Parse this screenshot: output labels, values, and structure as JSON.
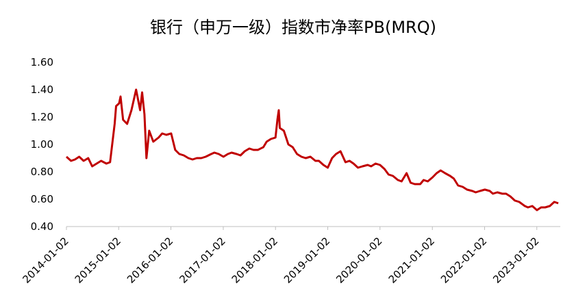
{
  "chart_data": {
    "type": "line",
    "title": "银行（申万一级）指数市净率PB(MRQ)",
    "color": "#c00000",
    "x": [
      "2014-01-02",
      "2014-02-03",
      "2014-03-03",
      "2014-04-01",
      "2014-05-02",
      "2014-06-03",
      "2014-07-01",
      "2014-08-01",
      "2014-09-01",
      "2014-10-08",
      "2014-11-03",
      "2014-12-05",
      "2014-12-15",
      "2015-01-05",
      "2015-01-15",
      "2015-02-02",
      "2015-03-02",
      "2015-04-01",
      "2015-05-04",
      "2015-06-01",
      "2015-06-15",
      "2015-07-01",
      "2015-07-15",
      "2015-08-03",
      "2015-09-01",
      "2015-10-08",
      "2015-11-02",
      "2015-12-01",
      "2016-01-04",
      "2016-02-01",
      "2016-03-01",
      "2016-04-01",
      "2016-05-03",
      "2016-06-01",
      "2016-07-01",
      "2016-08-01",
      "2016-09-01",
      "2016-10-10",
      "2016-11-01",
      "2016-12-01",
      "2017-01-03",
      "2017-02-03",
      "2017-03-01",
      "2017-04-05",
      "2017-05-02",
      "2017-06-01",
      "2017-07-03",
      "2017-08-01",
      "2017-09-01",
      "2017-10-09",
      "2017-11-01",
      "2017-12-01",
      "2018-01-02",
      "2018-01-15",
      "2018-01-25",
      "2018-02-01",
      "2018-03-01",
      "2018-04-02",
      "2018-05-02",
      "2018-06-01",
      "2018-07-02",
      "2018-08-01",
      "2018-09-03",
      "2018-10-08",
      "2018-11-01",
      "2018-12-03",
      "2019-01-02",
      "2019-02-01",
      "2019-03-01",
      "2019-04-01",
      "2019-05-06",
      "2019-06-03",
      "2019-07-01",
      "2019-08-01",
      "2019-09-02",
      "2019-10-08",
      "2019-11-01",
      "2019-12-02",
      "2020-01-02",
      "2020-02-03",
      "2020-03-02",
      "2020-04-01",
      "2020-05-06",
      "2020-06-01",
      "2020-07-06",
      "2020-08-03",
      "2020-09-01",
      "2020-10-09",
      "2020-11-02",
      "2020-12-01",
      "2021-01-04",
      "2021-02-01",
      "2021-03-01",
      "2021-04-01",
      "2021-05-06",
      "2021-06-01",
      "2021-07-01",
      "2021-08-02",
      "2021-09-01",
      "2021-10-08",
      "2021-11-01",
      "2021-12-01",
      "2022-01-04",
      "2022-02-07",
      "2022-03-01",
      "2022-04-01",
      "2022-05-05",
      "2022-06-01",
      "2022-07-01",
      "2022-08-01",
      "2022-09-01",
      "2022-10-10",
      "2022-11-01",
      "2022-12-01",
      "2023-01-03",
      "2023-02-01",
      "2023-03-01",
      "2023-04-03",
      "2023-05-04",
      "2023-06-01"
    ],
    "values": [
      0.91,
      0.88,
      0.89,
      0.91,
      0.88,
      0.9,
      0.84,
      0.86,
      0.88,
      0.86,
      0.87,
      1.15,
      1.28,
      1.3,
      1.35,
      1.18,
      1.15,
      1.25,
      1.4,
      1.25,
      1.38,
      1.22,
      0.9,
      1.1,
      1.02,
      1.05,
      1.08,
      1.07,
      1.08,
      0.96,
      0.93,
      0.92,
      0.9,
      0.89,
      0.9,
      0.9,
      0.91,
      0.93,
      0.94,
      0.93,
      0.91,
      0.93,
      0.94,
      0.93,
      0.92,
      0.95,
      0.97,
      0.96,
      0.96,
      0.98,
      1.02,
      1.04,
      1.05,
      1.18,
      1.25,
      1.12,
      1.1,
      1.0,
      0.98,
      0.93,
      0.91,
      0.9,
      0.91,
      0.88,
      0.88,
      0.85,
      0.83,
      0.9,
      0.93,
      0.95,
      0.87,
      0.88,
      0.86,
      0.83,
      0.84,
      0.85,
      0.84,
      0.86,
      0.85,
      0.82,
      0.78,
      0.77,
      0.74,
      0.73,
      0.79,
      0.72,
      0.71,
      0.71,
      0.74,
      0.73,
      0.76,
      0.79,
      0.81,
      0.79,
      0.77,
      0.75,
      0.7,
      0.69,
      0.67,
      0.66,
      0.65,
      0.66,
      0.67,
      0.66,
      0.64,
      0.65,
      0.64,
      0.64,
      0.62,
      0.59,
      0.58,
      0.55,
      0.54,
      0.55,
      0.52,
      0.54,
      0.54,
      0.55,
      0.58,
      0.57
    ],
    "xlim": [
      "2014-01-02",
      "2023-06-15"
    ],
    "xticks": [
      "2014-01-02",
      "2015-01-02",
      "2016-01-02",
      "2017-01-02",
      "2018-01-02",
      "2019-01-02",
      "2020-01-02",
      "2021-01-02",
      "2022-01-02",
      "2023-01-02"
    ],
    "ylim": [
      0.4,
      1.6
    ],
    "yticks": [
      {
        "value": 0.4,
        "label": "0.40"
      },
      {
        "value": 0.6,
        "label": "0.60"
      },
      {
        "value": 0.8,
        "label": "0.80"
      },
      {
        "value": 1.0,
        "label": "1.00"
      },
      {
        "value": 1.2,
        "label": "1.20"
      },
      {
        "value": 1.4,
        "label": "1.40"
      },
      {
        "value": 1.6,
        "label": "1.60"
      }
    ]
  }
}
